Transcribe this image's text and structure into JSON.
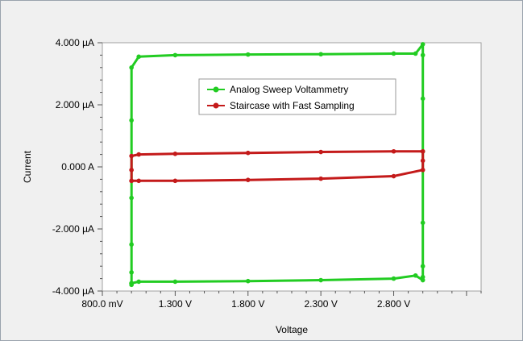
{
  "chart_data": {
    "type": "line",
    "xlabel": "Voltage",
    "ylabel": "Current",
    "xlim": [
      0.8,
      3.4
    ],
    "ylim": [
      -4.0,
      4.0
    ],
    "x_ticks": [
      0.8,
      1.3,
      1.8,
      2.3,
      2.8
    ],
    "x_tick_labels": [
      "800.0 mV",
      "1.300 V",
      "1.800 V",
      "2.300 V",
      "2.800 V"
    ],
    "y_ticks": [
      4.0,
      2.0,
      0.0,
      -2.0,
      -4.0
    ],
    "y_tick_labels": [
      "4.000 µA",
      "2.000 µA",
      "0.000 A",
      "-2.000 µA",
      "-4.000 µA"
    ],
    "grid": false,
    "legend_position": "upper-center",
    "series": [
      {
        "name": "Analog Sweep Voltammetry",
        "color": "#22cc22",
        "x": [
          1.0,
          1.0,
          1.0,
          1.0,
          1.0,
          1.0,
          1.05,
          1.3,
          1.8,
          2.3,
          2.8,
          2.95,
          3.0,
          3.0,
          3.0,
          3.0,
          3.0,
          3.0,
          3.0,
          3.0,
          2.95,
          2.8,
          2.3,
          1.8,
          1.3,
          1.05,
          1.0,
          1.0,
          1.0
        ],
        "values": [
          -3.75,
          -3.4,
          -2.5,
          -1.0,
          1.5,
          3.2,
          3.55,
          3.6,
          3.62,
          3.63,
          3.65,
          3.65,
          3.95,
          3.6,
          2.2,
          0.5,
          -1.8,
          -3.2,
          -3.55,
          -3.65,
          -3.5,
          -3.6,
          -3.65,
          -3.68,
          -3.7,
          -3.7,
          -3.75,
          -3.8,
          -3.75
        ]
      },
      {
        "name": "Staircase with Fast Sampling",
        "color": "#c41a1a",
        "x": [
          1.0,
          1.0,
          1.0,
          1.05,
          1.3,
          1.8,
          2.3,
          2.8,
          3.0,
          3.0,
          3.0,
          2.8,
          2.3,
          1.8,
          1.3,
          1.05,
          1.0
        ],
        "values": [
          -0.45,
          -0.1,
          0.35,
          0.4,
          0.42,
          0.45,
          0.48,
          0.5,
          0.5,
          0.2,
          -0.1,
          -0.3,
          -0.38,
          -0.42,
          -0.45,
          -0.45,
          -0.45
        ]
      }
    ]
  }
}
